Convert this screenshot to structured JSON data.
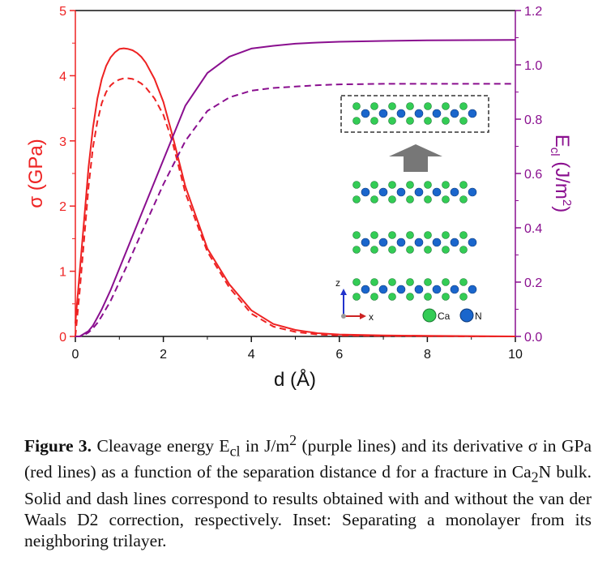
{
  "chart_data": {
    "type": "line",
    "xlabel": "d (Å)",
    "ylabel_left": "σ (GPa)",
    "ylabel_right_main": "E",
    "ylabel_right_sub": "cl",
    "ylabel_right_unit": " (J/m",
    "ylabel_right_sup": "2",
    "ylabel_right_close": ")",
    "xlim": [
      0,
      10
    ],
    "ylim_left": [
      0,
      5
    ],
    "ylim_right": [
      0,
      1.2
    ],
    "x_ticks": [
      "0",
      "2",
      "4",
      "6",
      "8",
      "10"
    ],
    "y_left_ticks": [
      "0",
      "1",
      "2",
      "3",
      "4",
      "5"
    ],
    "y_right_ticks": [
      "0.0",
      "0.2",
      "0.4",
      "0.6",
      "0.8",
      "1.0",
      "1.2"
    ],
    "colors": {
      "sigma": "#ee2222",
      "energy": "#8a0f8f",
      "inset_box": "#333333",
      "arrow": "#777777",
      "ca": "#33cc55",
      "n": "#1a66cc"
    },
    "series": [
      {
        "axis": "left",
        "style": "solid",
        "color": "#ee2222",
        "x": [
          0,
          0.1,
          0.2,
          0.3,
          0.4,
          0.5,
          0.6,
          0.7,
          0.8,
          0.9,
          1.0,
          1.1,
          1.2,
          1.3,
          1.4,
          1.5,
          1.6,
          1.8,
          2.0,
          2.2,
          2.5,
          3.0,
          3.5,
          4.0,
          4.5,
          5.0,
          5.5,
          6.0,
          7.0,
          8.0,
          9.0,
          10.0
        ],
        "y": [
          0.2,
          1.0,
          1.8,
          2.6,
          3.2,
          3.65,
          3.95,
          4.15,
          4.28,
          4.36,
          4.41,
          4.42,
          4.41,
          4.39,
          4.35,
          4.29,
          4.2,
          3.95,
          3.6,
          3.1,
          2.3,
          1.35,
          0.8,
          0.4,
          0.19,
          0.1,
          0.05,
          0.03,
          0.015,
          0.01,
          0.005,
          0.0
        ]
      },
      {
        "axis": "left",
        "style": "dash",
        "color": "#ee2222",
        "x": [
          0,
          0.1,
          0.2,
          0.3,
          0.4,
          0.5,
          0.6,
          0.7,
          0.8,
          0.9,
          1.0,
          1.1,
          1.2,
          1.3,
          1.4,
          1.5,
          1.6,
          1.8,
          2.0,
          2.2,
          2.5,
          3.0,
          3.5,
          4.0,
          4.5,
          5.0,
          5.5,
          6.0,
          7.0,
          8.0,
          9.0,
          10.0
        ],
        "y": [
          0.0,
          0.7,
          1.5,
          2.3,
          2.9,
          3.3,
          3.58,
          3.75,
          3.85,
          3.91,
          3.94,
          3.96,
          3.96,
          3.95,
          3.92,
          3.88,
          3.82,
          3.65,
          3.4,
          3.0,
          2.2,
          1.3,
          0.75,
          0.35,
          0.15,
          0.07,
          0.03,
          0.015,
          0.007,
          0.003,
          0.0,
          0.0
        ]
      },
      {
        "axis": "right",
        "style": "solid",
        "color": "#8a0f8f",
        "x": [
          0,
          0.1,
          0.2,
          0.3,
          0.4,
          0.5,
          0.6,
          0.8,
          1.0,
          1.2,
          1.5,
          2.0,
          2.5,
          3.0,
          3.5,
          4.0,
          4.5,
          5.0,
          5.5,
          6.0,
          7.0,
          8.0,
          9.0,
          10.0
        ],
        "y": [
          0.0,
          0.0,
          0.01,
          0.02,
          0.04,
          0.07,
          0.1,
          0.17,
          0.25,
          0.33,
          0.45,
          0.65,
          0.85,
          0.97,
          1.03,
          1.06,
          1.07,
          1.078,
          1.082,
          1.085,
          1.088,
          1.09,
          1.091,
          1.092
        ]
      },
      {
        "axis": "right",
        "style": "dash",
        "color": "#8a0f8f",
        "x": [
          0,
          0.1,
          0.2,
          0.3,
          0.4,
          0.5,
          0.6,
          0.8,
          1.0,
          1.2,
          1.5,
          2.0,
          2.5,
          3.0,
          3.5,
          4.0,
          4.5,
          5.0,
          5.5,
          6.0,
          7.0,
          8.0,
          9.0,
          10.0
        ],
        "y": [
          0.0,
          0.0,
          0.005,
          0.015,
          0.03,
          0.05,
          0.075,
          0.13,
          0.2,
          0.27,
          0.38,
          0.56,
          0.72,
          0.83,
          0.88,
          0.905,
          0.915,
          0.92,
          0.925,
          0.928,
          0.93,
          0.93,
          0.93,
          0.93
        ]
      }
    ]
  },
  "inset": {
    "legend_ca": "Ca",
    "legend_n": "N",
    "axis_z": "z",
    "axis_x": "x"
  },
  "caption": {
    "label": "Figure 3.",
    "text": " Cleavage energy E",
    "text_sub": "cl",
    "text_2": " in J/m",
    "text_sup": "2",
    "text_3": " (purple lines) and its derivative σ in GPa (red lines) as a function of the separation distance d for a fracture in Ca",
    "formula_sub": "2",
    "text_4": "N bulk. Solid and dash lines correspond to results obtained with and without the van der Waals D2 correction, respectively. Inset: Separating a monolayer from its neighboring trilayer."
  }
}
